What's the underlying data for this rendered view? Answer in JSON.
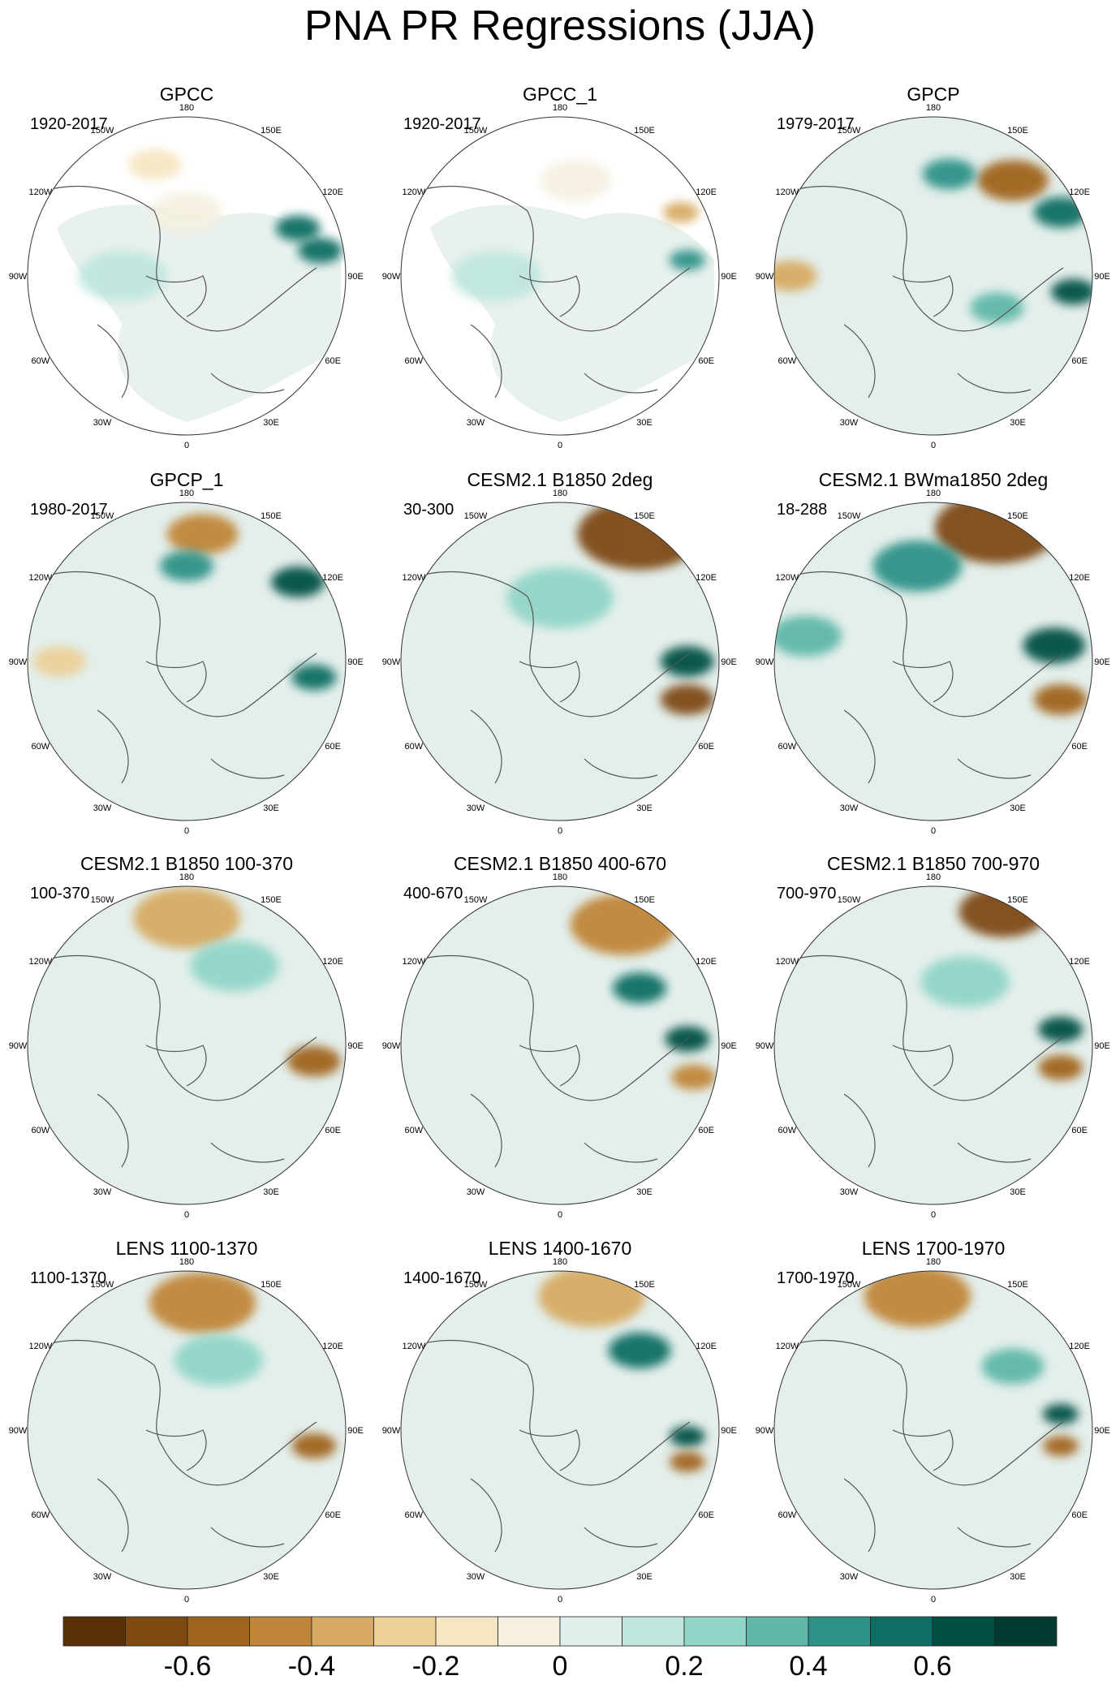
{
  "title": "PNA PR Regressions (JJA)",
  "panels": [
    {
      "title": "GPCC",
      "years": "1920-2017"
    },
    {
      "title": "GPCC_1",
      "years": "1920-2017"
    },
    {
      "title": "GPCP",
      "years": "1979-2017"
    },
    {
      "title": "GPCP_1",
      "years": "1980-2017"
    },
    {
      "title": "CESM2.1 B1850 2deg",
      "years": "30-300"
    },
    {
      "title": "CESM2.1 BWma1850 2deg",
      "years": "18-288"
    },
    {
      "title": "CESM2.1 B1850 100-370",
      "years": "100-370"
    },
    {
      "title": "CESM2.1 B1850 400-670",
      "years": "400-670"
    },
    {
      "title": "CESM2.1 B1850 700-970",
      "years": "700-970"
    },
    {
      "title": "LENS 1100-1370",
      "years": "1100-1370"
    },
    {
      "title": "LENS 1400-1670",
      "years": "1400-1670"
    },
    {
      "title": "LENS 1700-1970",
      "years": "1700-1970"
    }
  ],
  "longitude_labels": [
    "180",
    "150E",
    "120E",
    "90E",
    "60E",
    "30E",
    "0",
    "30W",
    "60W",
    "90W",
    "120W",
    "150W"
  ],
  "chart_data": {
    "type": "heatmap",
    "projection": "polar stereographic (Northern Hemisphere)",
    "variable": "PR regression on PNA index, JJA",
    "colorbar": {
      "levels": [
        -0.7,
        -0.6,
        -0.5,
        -0.4,
        -0.3,
        -0.2,
        -0.1,
        0,
        0.1,
        0.2,
        0.3,
        0.4,
        0.5,
        0.6,
        0.7
      ],
      "tick_labels": [
        "-0.6",
        "-0.4",
        "-0.2",
        "0",
        "0.2",
        "0.4",
        "0.6"
      ],
      "tick_values": [
        -0.6,
        -0.4,
        -0.2,
        0,
        0.2,
        0.4,
        0.6
      ],
      "colors": [
        "#5a3107",
        "#7e4a12",
        "#a0641f",
        "#c08538",
        "#d6aa62",
        "#ebd09a",
        "#f6e6c2",
        "#f5f0e0",
        "#e1efec",
        "#c0e6de",
        "#92d5c8",
        "#5fb8a9",
        "#2f9287",
        "#0f6e64",
        "#004f45",
        "#003a31"
      ]
    },
    "features": [
      {
        "panel": 0,
        "blobs": [
          [
            0.85,
            0.35,
            0.05,
            0.5
          ],
          [
            0.92,
            0.42,
            0.05,
            0.5
          ],
          [
            0.4,
            0.15,
            0.06,
            -0.2
          ],
          [
            0.3,
            0.5,
            0.1,
            0.1
          ],
          [
            0.5,
            0.3,
            0.08,
            -0.1
          ]
        ]
      },
      {
        "panel": 1,
        "blobs": [
          [
            0.88,
            0.3,
            0.04,
            -0.4
          ],
          [
            0.9,
            0.45,
            0.04,
            0.4
          ],
          [
            0.3,
            0.5,
            0.1,
            0.1
          ],
          [
            0.55,
            0.2,
            0.08,
            -0.1
          ]
        ]
      },
      {
        "panel": 2,
        "blobs": [
          [
            0.75,
            0.2,
            0.08,
            -0.6
          ],
          [
            0.55,
            0.18,
            0.06,
            0.4
          ],
          [
            0.9,
            0.3,
            0.06,
            0.5
          ],
          [
            0.94,
            0.55,
            0.05,
            0.6
          ],
          [
            0.7,
            0.6,
            0.06,
            0.3
          ],
          [
            0.05,
            0.5,
            0.06,
            -0.4
          ]
        ]
      },
      {
        "panel": 3,
        "blobs": [
          [
            0.55,
            0.1,
            0.08,
            -0.5
          ],
          [
            0.85,
            0.25,
            0.06,
            0.6
          ],
          [
            0.5,
            0.2,
            0.06,
            0.4
          ],
          [
            0.9,
            0.55,
            0.05,
            0.5
          ],
          [
            0.1,
            0.5,
            0.06,
            -0.3
          ]
        ]
      },
      {
        "panel": 4,
        "blobs": [
          [
            0.75,
            0.1,
            0.14,
            -0.7
          ],
          [
            0.9,
            0.5,
            0.06,
            0.6
          ],
          [
            0.9,
            0.62,
            0.06,
            -0.7
          ],
          [
            0.5,
            0.3,
            0.12,
            0.2
          ]
        ]
      },
      {
        "panel": 5,
        "blobs": [
          [
            0.7,
            0.08,
            0.14,
            -0.7
          ],
          [
            0.45,
            0.2,
            0.1,
            0.4
          ],
          [
            0.88,
            0.45,
            0.07,
            0.6
          ],
          [
            0.9,
            0.62,
            0.06,
            -0.6
          ],
          [
            0.1,
            0.42,
            0.08,
            0.3
          ]
        ]
      },
      {
        "panel": 6,
        "blobs": [
          [
            0.5,
            0.1,
            0.12,
            -0.4
          ],
          [
            0.9,
            0.55,
            0.06,
            -0.6
          ],
          [
            0.65,
            0.25,
            0.1,
            0.2
          ]
        ]
      },
      {
        "panel": 7,
        "blobs": [
          [
            0.7,
            0.12,
            0.12,
            -0.5
          ],
          [
            0.75,
            0.32,
            0.06,
            0.5
          ],
          [
            0.9,
            0.48,
            0.05,
            0.6
          ],
          [
            0.92,
            0.6,
            0.05,
            -0.5
          ]
        ]
      },
      {
        "panel": 8,
        "blobs": [
          [
            0.72,
            0.08,
            0.1,
            -0.7
          ],
          [
            0.9,
            0.45,
            0.05,
            0.6
          ],
          [
            0.9,
            0.57,
            0.05,
            -0.6
          ],
          [
            0.6,
            0.3,
            0.1,
            0.2
          ]
        ]
      },
      {
        "panel": 9,
        "blobs": [
          [
            0.55,
            0.1,
            0.12,
            -0.5
          ],
          [
            0.9,
            0.55,
            0.05,
            -0.6
          ],
          [
            0.6,
            0.28,
            0.1,
            0.2
          ]
        ]
      },
      {
        "panel": 10,
        "blobs": [
          [
            0.6,
            0.08,
            0.12,
            -0.4
          ],
          [
            0.75,
            0.25,
            0.07,
            0.5
          ],
          [
            0.9,
            0.52,
            0.04,
            0.6
          ],
          [
            0.9,
            0.6,
            0.04,
            -0.6
          ]
        ]
      },
      {
        "panel": 11,
        "blobs": [
          [
            0.45,
            0.08,
            0.12,
            -0.5
          ],
          [
            0.75,
            0.3,
            0.07,
            0.3
          ],
          [
            0.9,
            0.45,
            0.04,
            0.6
          ],
          [
            0.9,
            0.55,
            0.04,
            -0.6
          ]
        ]
      }
    ]
  }
}
